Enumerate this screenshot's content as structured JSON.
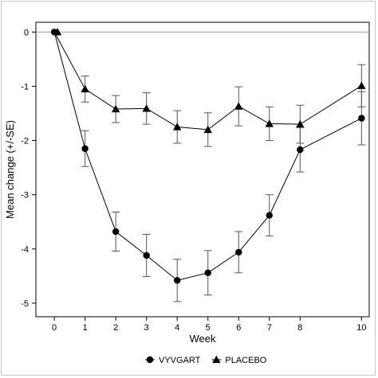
{
  "chart_data": {
    "type": "line",
    "xlabel": "Week",
    "ylabel": "Mean change (+/-SE)",
    "x_ticks": [
      0,
      1,
      2,
      3,
      4,
      5,
      6,
      7,
      8,
      10
    ],
    "y_ticks": [
      0,
      -1,
      -2,
      -3,
      -4,
      -5
    ],
    "xlim": [
      -0.6,
      10.25
    ],
    "ylim": [
      -5.25,
      0.18
    ],
    "reference_line_y": 0,
    "grid": false,
    "legend_position": "bottom-center",
    "series": [
      {
        "name": "VYVGART",
        "marker": "circle",
        "color": "#000000",
        "x": [
          0,
          1,
          2,
          3,
          4,
          5,
          6,
          7,
          8,
          10
        ],
        "values": [
          0,
          -2.15,
          -3.68,
          -4.12,
          -4.58,
          -4.44,
          -4.06,
          -3.38,
          -2.17,
          -1.59
        ],
        "se": [
          0,
          0.33,
          0.36,
          0.39,
          0.39,
          0.41,
          0.38,
          0.38,
          0.41,
          0.49
        ]
      },
      {
        "name": "PLACEBO",
        "marker": "triangle",
        "color": "#000000",
        "x": [
          0,
          1,
          2,
          3,
          4,
          5,
          6,
          7,
          8,
          10
        ],
        "values": [
          0,
          -1.05,
          -1.42,
          -1.41,
          -1.75,
          -1.8,
          -1.37,
          -1.69,
          -1.7,
          -0.99
        ],
        "se": [
          0,
          0.24,
          0.25,
          0.29,
          0.3,
          0.31,
          0.36,
          0.31,
          0.35,
          0.39
        ]
      }
    ]
  }
}
